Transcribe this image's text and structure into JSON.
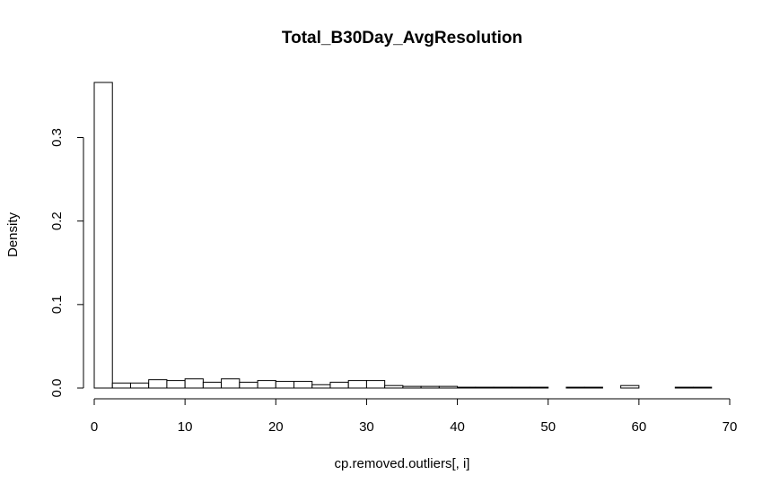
{
  "chart_data": {
    "type": "bar",
    "title": "Total_B30Day_AvgResolution",
    "xlabel": "cp.removed.outliers[, i]",
    "ylabel": "Density",
    "xlim": [
      0,
      70
    ],
    "ylim": [
      0,
      0.37
    ],
    "x_ticks": [
      "0",
      "10",
      "20",
      "30",
      "40",
      "50",
      "60",
      "70"
    ],
    "y_ticks": [
      "0.0",
      "0.1",
      "0.2",
      "0.3"
    ],
    "bin_width": 2,
    "bins": [
      {
        "x0": 0,
        "x1": 2,
        "density": 0.366
      },
      {
        "x0": 2,
        "x1": 4,
        "density": 0.006
      },
      {
        "x0": 4,
        "x1": 6,
        "density": 0.006
      },
      {
        "x0": 6,
        "x1": 8,
        "density": 0.01
      },
      {
        "x0": 8,
        "x1": 10,
        "density": 0.009
      },
      {
        "x0": 10,
        "x1": 12,
        "density": 0.011
      },
      {
        "x0": 12,
        "x1": 14,
        "density": 0.007
      },
      {
        "x0": 14,
        "x1": 16,
        "density": 0.011
      },
      {
        "x0": 16,
        "x1": 18,
        "density": 0.007
      },
      {
        "x0": 18,
        "x1": 20,
        "density": 0.009
      },
      {
        "x0": 20,
        "x1": 22,
        "density": 0.008
      },
      {
        "x0": 22,
        "x1": 24,
        "density": 0.008
      },
      {
        "x0": 24,
        "x1": 26,
        "density": 0.004
      },
      {
        "x0": 26,
        "x1": 28,
        "density": 0.007
      },
      {
        "x0": 28,
        "x1": 30,
        "density": 0.009
      },
      {
        "x0": 30,
        "x1": 32,
        "density": 0.009
      },
      {
        "x0": 32,
        "x1": 34,
        "density": 0.003
      },
      {
        "x0": 34,
        "x1": 36,
        "density": 0.002
      },
      {
        "x0": 36,
        "x1": 38,
        "density": 0.002
      },
      {
        "x0": 38,
        "x1": 40,
        "density": 0.002
      },
      {
        "x0": 40,
        "x1": 42,
        "density": 0.001
      },
      {
        "x0": 42,
        "x1": 44,
        "density": 0.001
      },
      {
        "x0": 44,
        "x1": 46,
        "density": 0.001
      },
      {
        "x0": 46,
        "x1": 48,
        "density": 0.001
      },
      {
        "x0": 48,
        "x1": 50,
        "density": 0.001
      },
      {
        "x0": 50,
        "x1": 52,
        "density": 0.0
      },
      {
        "x0": 52,
        "x1": 54,
        "density": 0.001
      },
      {
        "x0": 54,
        "x1": 56,
        "density": 0.001
      },
      {
        "x0": 56,
        "x1": 58,
        "density": 0.0
      },
      {
        "x0": 58,
        "x1": 60,
        "density": 0.003
      },
      {
        "x0": 60,
        "x1": 62,
        "density": 0.0
      },
      {
        "x0": 62,
        "x1": 64,
        "density": 0.0
      },
      {
        "x0": 64,
        "x1": 66,
        "density": 0.001
      },
      {
        "x0": 66,
        "x1": 68,
        "density": 0.001
      }
    ],
    "bar_fill": "#ffffff",
    "bar_stroke": "#000000",
    "grid": false
  }
}
